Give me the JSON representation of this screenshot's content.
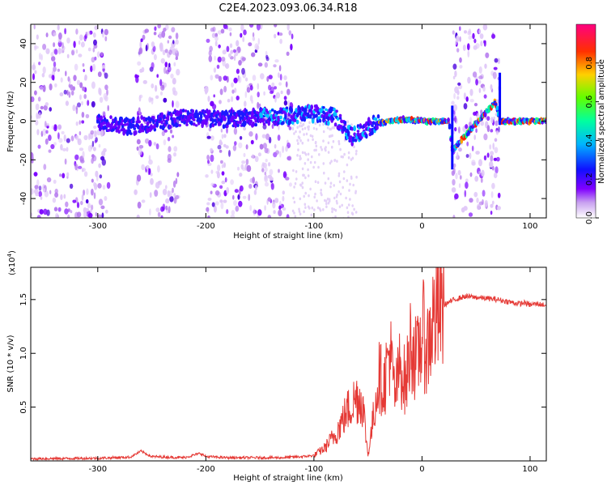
{
  "title": "C2E4.2023.093.06.34.R18",
  "colors": {
    "snr_line": "#e53935",
    "colormap": [
      "#ffffff",
      "#d8b8f0",
      "#8000ff",
      "#0000ff",
      "#00c8ff",
      "#00ff80",
      "#c8ff00",
      "#ffa000",
      "#ff2000",
      "#ff0080"
    ]
  },
  "chart_data": [
    {
      "type": "heatmap",
      "xlabel": "Height of straight line (km)",
      "ylabel": "Frequency (Hz)",
      "xlim": [
        -362,
        115
      ],
      "ylim": [
        -50,
        50
      ],
      "x_ticks": [
        -300,
        -200,
        -100,
        0,
        100
      ],
      "y_ticks": [
        -40,
        -20,
        0,
        20,
        40
      ],
      "colorbar": {
        "label": "Normalized spectral amplitude",
        "range": [
          0,
          1
        ],
        "ticks": [
          "0.0",
          "0.2",
          "0.4",
          "0.6",
          "0.8"
        ]
      },
      "ridge": {
        "x": [
          -300,
          -270,
          -220,
          -180,
          -150,
          -120,
          -100,
          -80,
          -65,
          -55,
          -45,
          -30,
          -15,
          0,
          25,
          28,
          68,
          72,
          115
        ],
        "y": [
          0,
          -3,
          2,
          1,
          2,
          3,
          4,
          2,
          -8,
          -5,
          -2,
          0,
          1,
          0,
          0,
          -15,
          10,
          0,
          0
        ]
      },
      "noise_bands_x": [
        [
          -362,
          -290
        ],
        [
          -265,
          -225
        ],
        [
          -200,
          -120
        ],
        [
          28,
          72
        ]
      ]
    },
    {
      "type": "line",
      "xlabel": "Height of straight line (km)",
      "ylabel": "SNR (10 * v/v)",
      "y_multiplier": "(x10",
      "y_multiplier_exp": "4",
      "y_multiplier_close": ")",
      "xlim": [
        -362,
        115
      ],
      "ylim": [
        0,
        18000
      ],
      "x_ticks": [
        -300,
        -200,
        -100,
        0,
        100
      ],
      "y_ticks": [
        5000,
        10000,
        15000
      ],
      "y_tick_labels": [
        "0.5",
        "1.0",
        "1.5"
      ],
      "series": [
        {
          "x": [
            -362,
            -300,
            -270,
            -260,
            -250,
            -220,
            -205,
            -200,
            -180,
            -130,
            -110,
            -100,
            -90,
            -80,
            -70,
            -60,
            -55,
            -50,
            -45,
            -40,
            -35,
            -30,
            -25,
            -20,
            -15,
            -10,
            -5,
            0,
            5,
            10,
            20,
            30,
            40,
            50,
            60,
            70,
            80,
            90,
            95,
            100,
            105,
            115
          ],
          "y": [
            200,
            250,
            350,
            900,
            400,
            300,
            700,
            400,
            300,
            300,
            400,
            500,
            1200,
            2500,
            4500,
            6000,
            5500,
            500,
            4000,
            8000,
            7000,
            10500,
            6000,
            9000,
            7000,
            11500,
            9000,
            12000,
            10500,
            13000,
            14500,
            15000,
            15300,
            15200,
            15100,
            15000,
            14800,
            14600,
            14700,
            14500,
            14600,
            14500
          ]
        }
      ]
    }
  ]
}
